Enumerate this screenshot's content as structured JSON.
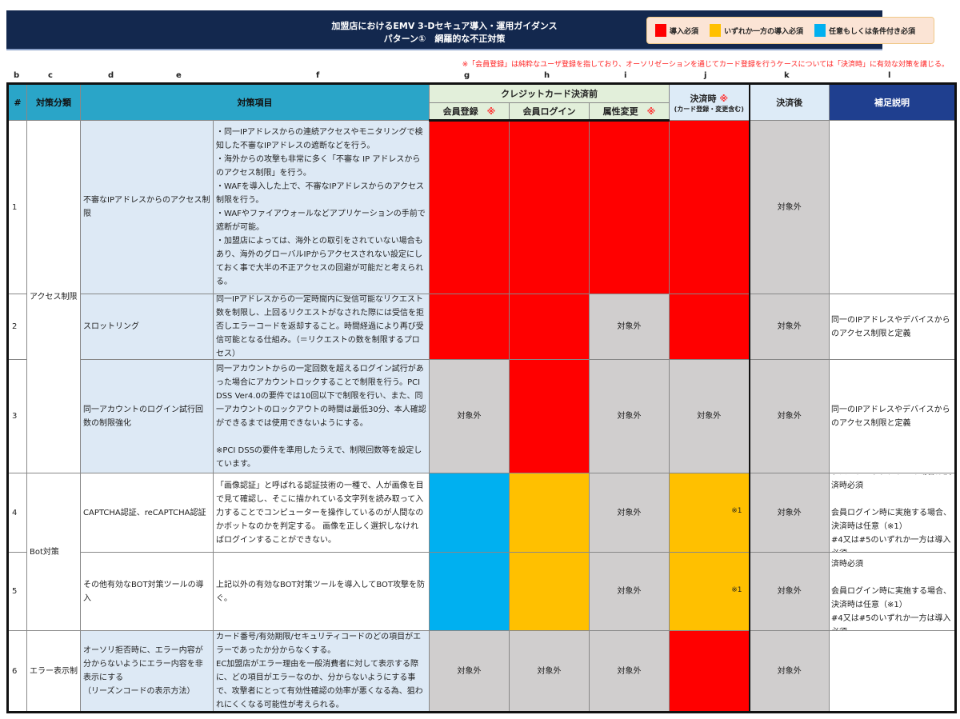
{
  "title": {
    "line1": "加盟店におけるEMV 3-Dセキュア導入・運用ガイダンス",
    "line2": "パターン①　網羅的な不正対策"
  },
  "legend": [
    {
      "color": "#ff0000",
      "label": "導入必須"
    },
    {
      "color": "#ffc000",
      "label": "いずれか一方の導入必須"
    },
    {
      "color": "#00b0f0",
      "label": "任意もしくは条件付き必須"
    }
  ],
  "note": "※「会員登録」は純粋なユーザ登録を指しており、オーソリゼーションを通じてカード登録を行うケースについては「決済時」に有効な対策を講じる。",
  "column_letters": [
    "b",
    "c",
    "d",
    "e",
    "f",
    "g",
    "h",
    "i",
    "j",
    "k",
    "l"
  ],
  "header": {
    "num": "#",
    "category": "対策分類",
    "item": "対策項目",
    "before": "クレジットカード決済前",
    "g": "会員登録",
    "h": "会員ログイン",
    "i": "属性変更",
    "j": "決済時",
    "j_sub": "(カード登録・変更含む)",
    "k": "決済後",
    "l": "補足説明",
    "mark": "※"
  },
  "categories": [
    {
      "label": "アクセス制限",
      "rows": 3
    },
    {
      "label": "Bot対策",
      "rows": 2
    },
    {
      "label": "エラー表示制",
      "rows": 1
    }
  ],
  "rows": [
    {
      "num": "1",
      "item": "不審なIPアドレスからのアクセス制限",
      "detail": "・同一IPアドレスからの連続アクセスやモニタリングで検知した不審なIPアドレスの遮断などを行う。\n・海外からの攻撃も非常に多く「不審な IP アドレスからのアクセス制限」を行う。\n・WAFを導入した上で、不審なIPアドレスからのアクセス制限を行う。\n・WAFやファイアウォールなどアプリケーションの手前で遮断が可能。\n・加盟店によっては、海外との取引をされていない場合もあり、海外のグローバルIPからアクセスされない設定にしておく事で大半の不正アクセスの回避が可能だと考えられる。",
      "bg": "lightblue",
      "cells": [
        {
          "s": "red",
          "t": ""
        },
        {
          "s": "red",
          "t": ""
        },
        {
          "s": "red",
          "t": ""
        },
        {
          "s": "red",
          "t": ""
        },
        {
          "s": "grey",
          "t": "対象外"
        }
      ],
      "remark": ""
    },
    {
      "num": "2",
      "item": "スロットリング",
      "detail": "同一IPアドレスからの一定時間内に受信可能なリクエスト数を制限し、上回るリクエストがなされた際には受信を拒否しエラーコードを返却すること。時間経過により再び受信可能となる仕組み。（＝リクエストの数を制限するプロセス）",
      "bg": "lightblue",
      "cells": [
        {
          "s": "red",
          "t": ""
        },
        {
          "s": "red",
          "t": ""
        },
        {
          "s": "grey",
          "t": "対象外"
        },
        {
          "s": "red",
          "t": ""
        },
        {
          "s": "grey",
          "t": "対象外"
        }
      ],
      "remark": "同一のIPアドレスやデバイスからのアクセス制限と定義"
    },
    {
      "num": "3",
      "item": "同一アカウントのログイン試行回数の制限強化",
      "detail": "同一アカウントからの一定回数を超えるログイン試行があった場合にアカウントロックすることで制限を行う。PCI DSS Ver4.0の要件では10回以下で制限を行い、また、同一アカウントのロックアウトの時間は最低30分、本人確認ができるまでは使用できないようにする。\n\n※PCI DSSの要件を準用したうえで、制限回数等を設定しています。",
      "bg": "lightblue",
      "cells": [
        {
          "s": "grey",
          "t": "対象外"
        },
        {
          "s": "red",
          "t": ""
        },
        {
          "s": "grey",
          "t": "対象外"
        },
        {
          "s": "grey",
          "t": "対象外"
        },
        {
          "s": "grey",
          "t": "対象外"
        }
      ],
      "remark": "同一のIPアドレスやデバイスからのアクセス制限と定義"
    },
    {
      "num": "4",
      "item": "CAPTCHA認証、reCAPTCHA認証",
      "detail": "「画像認証」と呼ばれる認証技術の一種で、人が画像を目で見て確認し、そこに描かれている文字列を読み取って入力することでコンピューターを操作しているのが人間なのかボットなのかを判定する。 画像を正しく選択しなければログインすることができない。",
      "bg": "white",
      "cells": [
        {
          "s": "blue",
          "t": ""
        },
        {
          "s": "orange",
          "t": ""
        },
        {
          "s": "grey",
          "t": "対象外"
        },
        {
          "s": "orange",
          "t": "※1"
        },
        {
          "s": "grey",
          "t": "対象外"
        }
      ],
      "remark": "ゲストチェックアウトの場合は決済時必須\n\n会員ログイン時に実施する場合、決済時は任意（※1）\n#4又は#5のいずれか一方は導入必須"
    },
    {
      "num": "5",
      "item": "その他有効なBOT対策ツールの導入",
      "detail": "上記以外の有効なBOT対策ツールを導入してBOT攻撃を防ぐ。",
      "bg": "white",
      "cells": [
        {
          "s": "blue",
          "t": ""
        },
        {
          "s": "orange",
          "t": ""
        },
        {
          "s": "grey",
          "t": "対象外"
        },
        {
          "s": "orange",
          "t": "※1"
        },
        {
          "s": "grey",
          "t": "対象外"
        }
      ],
      "remark": "ゲストチェックアウトの場合は決済時必須\n\n会員ログイン時に実施する場合、決済時は任意（※1）\n#4又は#5のいずれか一方は導入必須"
    },
    {
      "num": "6",
      "item": "オーソリ拒否時に、エラー内容が分からないようにエラー内容を非表示にする\n（リーズンコードの表示方法）",
      "detail": "カード番号/有効期限/セキュリティコードのどの項目がエラーであったか分からなくする。\nEC加盟店がエラー理由を一般消費者に対して表示する際に、どの項目がエラーなのか、分からないようにする事で、攻撃者にとって有効性確認の効率が悪くなる為、狙われにくくなる可能性が考えられる。",
      "bg": "lightblue",
      "cells": [
        {
          "s": "grey",
          "t": "対象外"
        },
        {
          "s": "grey",
          "t": "対象外"
        },
        {
          "s": "grey",
          "t": "対象外"
        },
        {
          "s": "red",
          "t": ""
        },
        {
          "s": "grey",
          "t": "対象外"
        }
      ],
      "remark": ""
    }
  ]
}
